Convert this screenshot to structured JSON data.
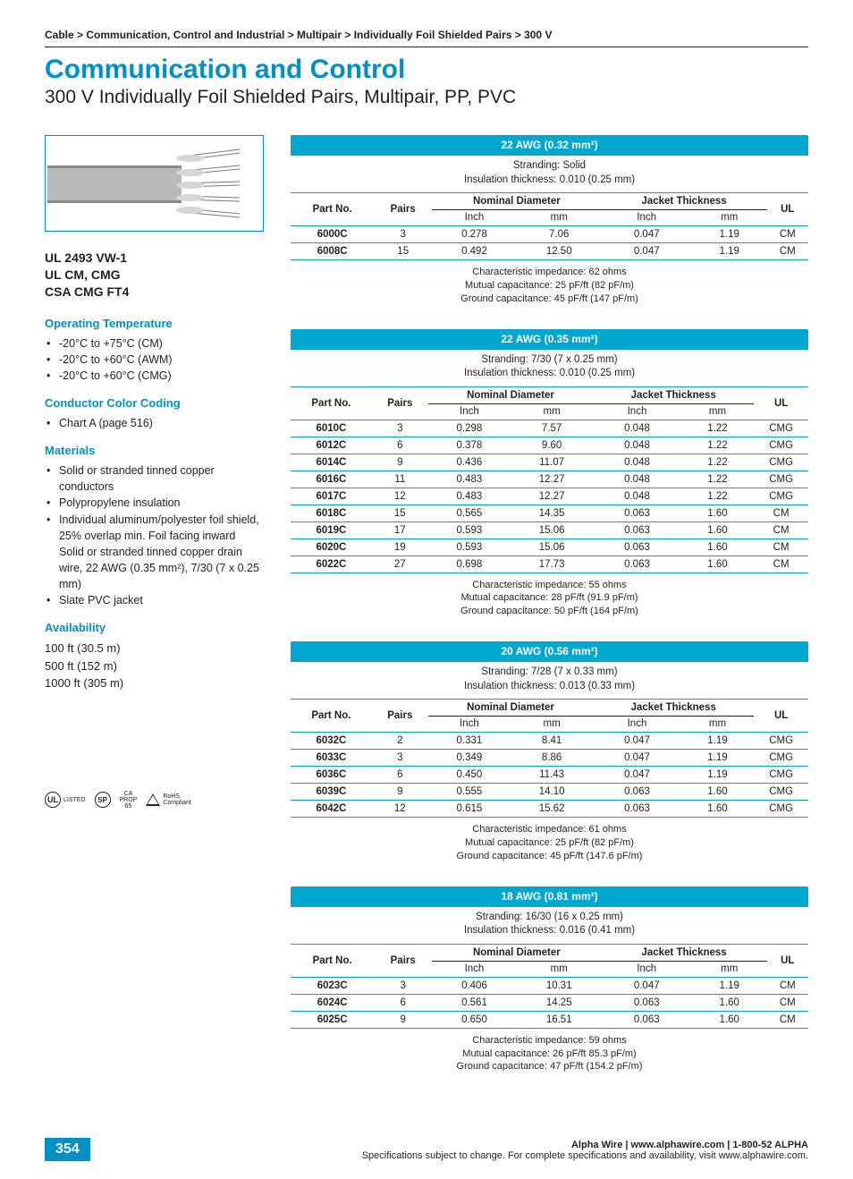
{
  "breadcrumb": "Cable > Communication, Control and Industrial > Multipair > Individually Foil Shielded Pairs > 300 V",
  "title": "Communication and Control",
  "subtitle": "300 V Individually Foil Shielded Pairs, Multipair, PP, PVC",
  "specs_heading": "UL 2493 VW-1\nUL CM, CMG\nCSA CMG FT4",
  "left": {
    "op_temp_h": "Operating Temperature",
    "op_temp": [
      "-20°C to +75°C (CM)",
      "-20°C to +60°C (AWM)",
      "-20°C to +60°C (CMG)"
    ],
    "color_h": "Conductor Color Coding",
    "color": [
      "Chart A (page 516)"
    ],
    "materials_h": "Materials",
    "materials": [
      "Solid or stranded tinned copper conductors",
      "Polypropylene insulation",
      "Individual aluminum/polyester foil shield, 25% overlap min. Foil facing inward\nSolid or stranded tinned copper drain wire, 22 AWG (0.35 mm²), 7/30 (7 x 0.25 mm)",
      "Slate PVC jacket"
    ],
    "avail_h": "Availability",
    "avail": "100 ft (30.5 m)\n500 ft (152 m)\n1000 ft (305 m)"
  },
  "table_headers": {
    "part": "Part No.",
    "pairs": "Pairs",
    "nomdia": "Nominal Diameter",
    "jacket": "Jacket Thickness",
    "ul": "UL",
    "inch": "Inch",
    "mm": "mm"
  },
  "tables": [
    {
      "title": "22 AWG (0.32 mm²)",
      "sub1": "Stranding: Solid",
      "sub2": "Insulation thickness: 0.010 (0.25 mm)",
      "rows": [
        {
          "part": "6000C",
          "pairs": "3",
          "di": "0.278",
          "dm": "7.06",
          "ji": "0.047",
          "jm": "1.19",
          "ul": "CM"
        },
        {
          "part": "6008C",
          "pairs": "15",
          "di": "0.492",
          "dm": "12.50",
          "ji": "0.047",
          "jm": "1.19",
          "ul": "CM"
        }
      ],
      "foot1": "Characteristic impedance: 62 ohms",
      "foot2": "Mutual capacitance: 25 pF/ft (82 pF/m)",
      "foot3": "Ground capacitance: 45 pF/ft (147 pF/m)"
    },
    {
      "title": "22 AWG (0.35 mm²)",
      "sub1": "Stranding: 7/30 (7 x 0.25 mm)",
      "sub2": "Insulation thickness: 0.010 (0.25 mm)",
      "rows": [
        {
          "part": "6010C",
          "pairs": "3",
          "di": "0.298",
          "dm": "7.57",
          "ji": "0.048",
          "jm": "1.22",
          "ul": "CMG"
        },
        {
          "part": "6012C",
          "pairs": "6",
          "di": "0.378",
          "dm": "9.60",
          "ji": "0.048",
          "jm": "1.22",
          "ul": "CMG"
        },
        {
          "part": "6014C",
          "pairs": "9",
          "di": "0.436",
          "dm": "11.07",
          "ji": "0.048",
          "jm": "1.22",
          "ul": "CMG"
        },
        {
          "part": "6016C",
          "pairs": "11",
          "di": "0.483",
          "dm": "12.27",
          "ji": "0.048",
          "jm": "1.22",
          "ul": "CMG"
        },
        {
          "part": "6017C",
          "pairs": "12",
          "di": "0.483",
          "dm": "12.27",
          "ji": "0.048",
          "jm": "1.22",
          "ul": "CMG"
        },
        {
          "part": "6018C",
          "pairs": "15",
          "di": "0.565",
          "dm": "14.35",
          "ji": "0.063",
          "jm": "1.60",
          "ul": "CM"
        },
        {
          "part": "6019C",
          "pairs": "17",
          "di": "0.593",
          "dm": "15.06",
          "ji": "0.063",
          "jm": "1.60",
          "ul": "CM"
        },
        {
          "part": "6020C",
          "pairs": "19",
          "di": "0.593",
          "dm": "15.06",
          "ji": "0.063",
          "jm": "1.60",
          "ul": "CM"
        },
        {
          "part": "6022C",
          "pairs": "27",
          "di": "0.698",
          "dm": "17.73",
          "ji": "0.063",
          "jm": "1.60",
          "ul": "CM"
        }
      ],
      "foot1": "Characteristic impedance: 55 ohms",
      "foot2": "Mutual capacitance: 28 pF/ft (91.9 pF/m)",
      "foot3": "Ground capacitance: 50 pF/ft (164 pF/m)"
    },
    {
      "title": "20 AWG (0.56 mm²)",
      "sub1": "Stranding: 7/28 (7 x 0.33 mm)",
      "sub2": "Insulation thickness: 0.013 (0.33 mm)",
      "rows": [
        {
          "part": "6032C",
          "pairs": "2",
          "di": "0.331",
          "dm": "8.41",
          "ji": "0.047",
          "jm": "1.19",
          "ul": "CMG"
        },
        {
          "part": "6033C",
          "pairs": "3",
          "di": "0.349",
          "dm": "8.86",
          "ji": "0.047",
          "jm": "1.19",
          "ul": "CMG"
        },
        {
          "part": "6036C",
          "pairs": "6",
          "di": "0.450",
          "dm": "11.43",
          "ji": "0.047",
          "jm": "1.19",
          "ul": "CMG"
        },
        {
          "part": "6039C",
          "pairs": "9",
          "di": "0.555",
          "dm": "14.10",
          "ji": "0.063",
          "jm": "1.60",
          "ul": "CMG"
        },
        {
          "part": "6042C",
          "pairs": "12",
          "di": "0.615",
          "dm": "15.62",
          "ji": "0.063",
          "jm": "1.60",
          "ul": "CMG"
        }
      ],
      "foot1": "Characteristic impedance: 61 ohms",
      "foot2": "Mutual capacitance: 25 pF/ft (82 pF/m)",
      "foot3": "Ground capacitance: 45 pF/ft (147.6 pF/m)"
    },
    {
      "title": "18 AWG (0.81 mm²)",
      "sub1": "Stranding: 16/30 (16 x 0.25 mm)",
      "sub2": "Insulation thickness: 0.016 (0.41 mm)",
      "rows": [
        {
          "part": "6023C",
          "pairs": "3",
          "di": "0.406",
          "dm": "10.31",
          "ji": "0.047",
          "jm": "1.19",
          "ul": "CM"
        },
        {
          "part": "6024C",
          "pairs": "6",
          "di": "0.561",
          "dm": "14.25",
          "ji": "0.063",
          "jm": "1.60",
          "ul": "CM"
        },
        {
          "part": "6025C",
          "pairs": "9",
          "di": "0.650",
          "dm": "16.51",
          "ji": "0.063",
          "jm": "1.60",
          "ul": "CM"
        }
      ],
      "foot1": "Characteristic impedance: 59 ohms",
      "foot2": "Mutual capacitance: 26 pF/ft 85.3 pF/m)",
      "foot3": "Ground capacitance: 47 pF/ft (154.2 pF/m)"
    }
  ],
  "badges": {
    "ul": "UL",
    "ul_t": "LISTED",
    "sp": "SP",
    "sp_t": "®",
    "ca": "CA\nPROP\n65",
    "rohs": "RoHS\nCompliant"
  },
  "footer": {
    "line1": "Alpha Wire | www.alphawire.com | 1-800-52 ALPHA",
    "line2": "Specifications subject to change. For complete specifications and availability, visit www.alphawire.com.",
    "page": "354"
  },
  "colors": {
    "accent": "#00a7ce",
    "text": "#231f20"
  }
}
